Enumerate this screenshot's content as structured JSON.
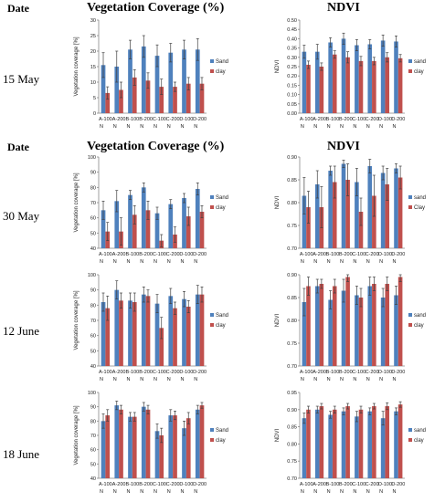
{
  "headers": {
    "date": "Date",
    "vegetation_title": "Vegetation Coverage (%)",
    "ndvi_title": "NDVI"
  },
  "dates": [
    "15 May",
    "30 May",
    "12 June",
    "18 June"
  ],
  "colors": {
    "sand": "#4f81bd",
    "clay": "#c0504d",
    "error": "#404040"
  },
  "chart_data": [
    {
      "type": "bar",
      "panel": "vegetation",
      "date": "15 May",
      "categories": [
        "A-100 N",
        "A-200 N",
        "B-100 N",
        "B-200 N",
        "C-100 N",
        "C-200 N",
        "D-100 N",
        "D-200 N"
      ],
      "ylabel": "Vegetation coverage [%]",
      "ylim": [
        0,
        30
      ],
      "yticks": [
        0,
        5,
        10,
        15,
        20,
        25,
        30
      ],
      "tick_format": "int",
      "legend_position": "right",
      "series": [
        {
          "name": "Sand",
          "values": [
            15.5,
            15,
            20.5,
            21.5,
            18.5,
            19.5,
            20.5,
            20.5
          ],
          "errors": [
            4,
            5,
            3,
            3.5,
            3.5,
            3,
            3,
            3.5
          ]
        },
        {
          "name": "clay",
          "values": [
            6.5,
            7.5,
            11.5,
            10.5,
            8.5,
            8.5,
            9.5,
            9.5
          ],
          "errors": [
            2,
            2.5,
            2.5,
            2.5,
            2.5,
            1.5,
            2,
            2
          ]
        }
      ]
    },
    {
      "type": "bar",
      "panel": "ndvi",
      "date": "15 May",
      "categories": [
        "A-100 N",
        "A-200 N",
        "B-100 N",
        "B-200 N",
        "C-100 N",
        "C-200 N",
        "D-100 N",
        "D-200 N"
      ],
      "ylabel": "NDVI",
      "ylim": [
        0,
        0.5
      ],
      "yticks": [
        0,
        0.05,
        0.1,
        0.15,
        0.2,
        0.25,
        0.3,
        0.35,
        0.4,
        0.45,
        0.5
      ],
      "tick_format": "2dp",
      "legend_position": "right",
      "series": [
        {
          "name": "sand",
          "values": [
            0.33,
            0.33,
            0.38,
            0.4,
            0.365,
            0.37,
            0.39,
            0.385
          ],
          "errors": [
            0.035,
            0.04,
            0.025,
            0.03,
            0.03,
            0.025,
            0.03,
            0.03
          ]
        },
        {
          "name": "clay",
          "values": [
            0.26,
            0.25,
            0.315,
            0.3,
            0.28,
            0.28,
            0.3,
            0.295
          ],
          "errors": [
            0.02,
            0.02,
            0.02,
            0.03,
            0.025,
            0.02,
            0.025,
            0.02
          ]
        }
      ]
    },
    {
      "type": "bar",
      "panel": "vegetation",
      "date": "30 May",
      "categories": [
        "A-100 N",
        "A-200 N",
        "B-100 N",
        "B-200 N",
        "C-100 N",
        "C-200 N",
        "D-100 N",
        "D-200 N"
      ],
      "ylabel": "Vegetation coverage [%]",
      "ylim": [
        40,
        100
      ],
      "yticks": [
        40,
        50,
        60,
        70,
        80,
        90,
        100
      ],
      "tick_format": "int",
      "legend_position": "right",
      "series": [
        {
          "name": "Sand",
          "values": [
            65,
            71,
            75,
            80,
            63,
            69,
            73,
            79
          ],
          "errors": [
            6,
            7,
            3,
            3,
            4,
            3,
            3,
            4
          ]
        },
        {
          "name": "clay",
          "values": [
            51,
            51,
            62,
            65,
            45,
            49,
            61,
            64
          ],
          "errors": [
            6,
            9,
            6,
            6,
            4,
            5,
            6,
            4
          ]
        }
      ]
    },
    {
      "type": "bar",
      "panel": "ndvi",
      "date": "30 May",
      "categories": [
        "A-100 N",
        "A-200 N",
        "B-100 N",
        "B-200 N",
        "C-100 N",
        "C-200 N",
        "D-100 N",
        "D-200 N"
      ],
      "ylabel": "NDVI",
      "ylim": [
        0.7,
        0.9
      ],
      "yticks": [
        0.7,
        0.75,
        0.8,
        0.85,
        0.9
      ],
      "tick_format": "2dp",
      "legend_position": "right",
      "series": [
        {
          "name": "sand",
          "values": [
            0.815,
            0.84,
            0.87,
            0.885,
            0.845,
            0.88,
            0.865,
            0.875
          ],
          "errors": [
            0.04,
            0.03,
            0.01,
            0.008,
            0.03,
            0.015,
            0.015,
            0.01
          ]
        },
        {
          "name": "Clay",
          "values": [
            0.79,
            0.79,
            0.845,
            0.85,
            0.78,
            0.815,
            0.84,
            0.855
          ],
          "errors": [
            0.035,
            0.045,
            0.035,
            0.035,
            0.03,
            0.045,
            0.035,
            0.025
          ]
        }
      ]
    },
    {
      "type": "bar",
      "panel": "vegetation",
      "date": "12 June",
      "categories": [
        "A-100 N",
        "A-200 N",
        "B-100 N",
        "B-200 N",
        "C-100 N",
        "C-200 N",
        "D-100 N",
        "D-200 N"
      ],
      "ylabel": "Vegetation coverage [%]",
      "ylim": [
        40,
        100
      ],
      "yticks": [
        40,
        50,
        60,
        70,
        80,
        90,
        100
      ],
      "tick_format": "int",
      "legend_position": "right",
      "series": [
        {
          "name": "Sand",
          "values": [
            82,
            90,
            83,
            87,
            81,
            86,
            84,
            87
          ],
          "errors": [
            6,
            6,
            5,
            5,
            6,
            5,
            5,
            6
          ]
        },
        {
          "name": "clay",
          "values": [
            78,
            83,
            82,
            86,
            65,
            78,
            79,
            87
          ],
          "errors": [
            8,
            5,
            6,
            4,
            7,
            4,
            4,
            5
          ]
        }
      ]
    },
    {
      "type": "bar",
      "panel": "ndvi",
      "date": "12 June",
      "categories": [
        "A-100 N",
        "A-200 N",
        "B-100 N",
        "B-200 N",
        "C-100 N",
        "C-200 N",
        "D-100 N",
        "D-200 N"
      ],
      "ylabel": "NDVI",
      "ylim": [
        0.7,
        0.9
      ],
      "yticks": [
        0.7,
        0.75,
        0.8,
        0.85,
        0.9
      ],
      "tick_format": "2dp",
      "legend_position": "right",
      "series": [
        {
          "name": "sand",
          "values": [
            0.84,
            0.875,
            0.845,
            0.865,
            0.855,
            0.875,
            0.85,
            0.855
          ],
          "errors": [
            0.03,
            0.015,
            0.02,
            0.025,
            0.02,
            0.02,
            0.02,
            0.02
          ]
        },
        {
          "name": "clay",
          "values": [
            0.875,
            0.88,
            0.875,
            0.895,
            0.85,
            0.88,
            0.88,
            0.895
          ],
          "errors": [
            0.02,
            0.01,
            0.015,
            0.01,
            0.02,
            0.015,
            0.015,
            0.01
          ]
        }
      ]
    },
    {
      "type": "bar",
      "panel": "vegetation",
      "date": "18 June",
      "categories": [
        "A-100 N",
        "A-200 N",
        "B-100 N",
        "B-200 N",
        "C-100 N",
        "C-200 N",
        "D-100 N",
        "D-200 N"
      ],
      "ylabel": "Vegetation coverage [%]",
      "ylim": [
        40,
        100
      ],
      "yticks": [
        40,
        50,
        60,
        70,
        80,
        90,
        100
      ],
      "tick_format": "int",
      "legend_position": "right",
      "series": [
        {
          "name": "Sand",
          "values": [
            80,
            91,
            83,
            90,
            73,
            84,
            75,
            88
          ],
          "errors": [
            5,
            3,
            3,
            3,
            5,
            4,
            5,
            3
          ]
        },
        {
          "name": "clay",
          "values": [
            84,
            88,
            83,
            88,
            70,
            84,
            82,
            91
          ],
          "errors": [
            4,
            3,
            3,
            3,
            5,
            3,
            4,
            2
          ]
        }
      ]
    },
    {
      "type": "bar",
      "panel": "ndvi",
      "date": "18 June",
      "categories": [
        "A-100 N",
        "A-200 N",
        "B-100 N",
        "B-200 N",
        "C-100 N",
        "C-200 N",
        "D-100 N",
        "D-200 N"
      ],
      "ylabel": "NDVI",
      "ylim": [
        0.7,
        0.95
      ],
      "yticks": [
        0.7,
        0.75,
        0.8,
        0.85,
        0.9,
        0.95
      ],
      "tick_format": "2dp",
      "legend_position": "right",
      "series": [
        {
          "name": "sand",
          "values": [
            0.875,
            0.9,
            0.885,
            0.895,
            0.88,
            0.895,
            0.875,
            0.895
          ],
          "errors": [
            0.015,
            0.01,
            0.01,
            0.01,
            0.015,
            0.01,
            0.02,
            0.01
          ]
        },
        {
          "name": "clay",
          "values": [
            0.9,
            0.91,
            0.9,
            0.91,
            0.9,
            0.91,
            0.91,
            0.915
          ],
          "errors": [
            0.01,
            0.008,
            0.01,
            0.008,
            0.01,
            0.008,
            0.01,
            0.008
          ]
        }
      ]
    }
  ]
}
